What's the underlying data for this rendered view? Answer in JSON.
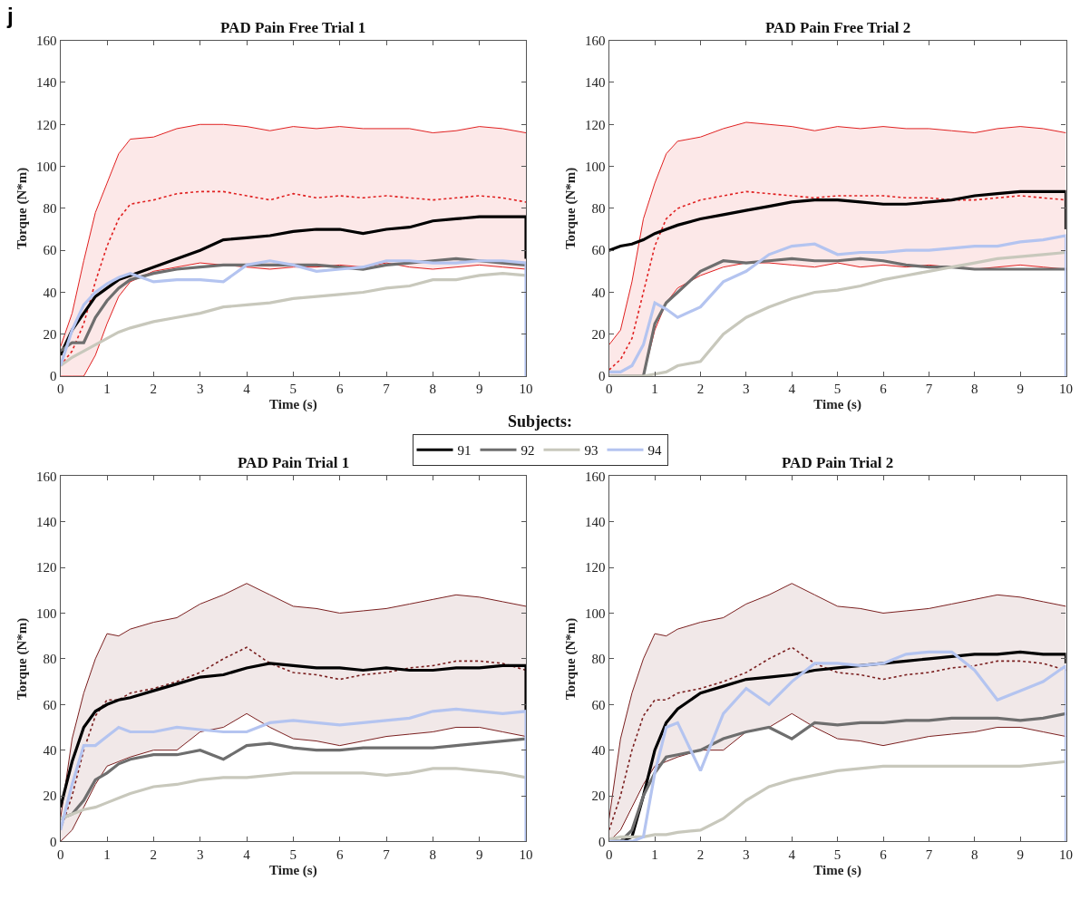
{
  "chart_data": [
    {
      "type": "line",
      "title": "PAD Pain Free Trial 1",
      "xlabel": "Time (s)",
      "ylabel": "Torque (N*m)",
      "annotations": [
        "j"
      ],
      "legend": "bottom",
      "legend_title": "Subjects:",
      "x": [
        0,
        0.25,
        0.5,
        0.75,
        1,
        1.25,
        1.5,
        2,
        2.5,
        3,
        3.5,
        4,
        4.5,
        5,
        5.5,
        6,
        6.5,
        7,
        7.5,
        8,
        8.5,
        9,
        9.5,
        10,
        10
      ],
      "xlim": [
        0,
        10
      ],
      "xticks": [
        0,
        1,
        2,
        3,
        4,
        5,
        6,
        7,
        8,
        9,
        10
      ],
      "ylim": [
        0,
        160
      ],
      "yticks": [
        0,
        20,
        40,
        60,
        80,
        100,
        120,
        140,
        160
      ],
      "series": [
        {
          "color": "#e02020",
          "line_style": "dotted",
          "values": [
            5,
            12,
            25,
            45,
            62,
            75,
            82,
            84,
            87,
            88,
            88,
            86,
            84,
            87,
            85,
            86,
            85,
            86,
            85,
            84,
            85,
            86,
            85,
            83,
            83
          ],
          "upper": [
            14,
            30,
            55,
            78,
            92,
            106,
            113,
            114,
            118,
            120,
            120,
            119,
            117,
            119,
            118,
            119,
            118,
            118,
            118,
            116,
            117,
            119,
            118,
            116,
            116
          ],
          "lower": [
            0,
            0,
            0,
            10,
            25,
            38,
            45,
            50,
            52,
            54,
            53,
            52,
            51,
            52,
            52,
            53,
            52,
            54,
            52,
            51,
            52,
            53,
            52,
            51,
            51
          ]
        },
        {
          "color": "#e02020",
          "values": [
            14,
            30,
            55,
            78,
            92,
            106,
            113,
            114,
            118,
            120,
            120,
            119,
            117,
            119,
            118,
            119,
            118,
            118,
            118,
            116,
            117,
            119,
            118,
            116,
            116
          ]
        },
        {
          "color": "#e02020",
          "values": [
            0,
            0,
            0,
            10,
            25,
            38,
            45,
            50,
            52,
            54,
            53,
            52,
            51,
            52,
            52,
            53,
            52,
            54,
            52,
            51,
            52,
            53,
            52,
            51,
            51
          ]
        },
        {
          "name": "91",
          "color": "#000000",
          "values": [
            10,
            22,
            30,
            38,
            42,
            46,
            48,
            52,
            56,
            60,
            65,
            66,
            67,
            69,
            70,
            70,
            68,
            70,
            71,
            74,
            75,
            76,
            76,
            76,
            56
          ]
        },
        {
          "name": "92",
          "color": "#6e6e6e",
          "values": [
            12,
            16,
            16,
            28,
            36,
            42,
            46,
            49,
            51,
            52,
            53,
            53,
            53,
            53,
            53,
            52,
            51,
            53,
            54,
            55,
            56,
            55,
            54,
            53,
            53
          ]
        },
        {
          "name": "93",
          "color": "#c8c8bc",
          "values": [
            5,
            9,
            12,
            15,
            18,
            21,
            23,
            26,
            28,
            30,
            33,
            34,
            35,
            37,
            38,
            39,
            40,
            42,
            43,
            46,
            46,
            48,
            49,
            48,
            48
          ]
        },
        {
          "name": "94",
          "color": "#b4c4f0",
          "values": [
            5,
            22,
            34,
            40,
            44,
            47,
            49,
            45,
            46,
            46,
            45,
            53,
            55,
            53,
            50,
            51,
            52,
            55,
            55,
            54,
            54,
            55,
            55,
            54,
            0
          ]
        }
      ]
    },
    {
      "type": "line",
      "title": "PAD Pain Free Trial 2",
      "xlabel": "Time (s)",
      "ylabel": "Torque (N*m)",
      "x": [
        0,
        0.25,
        0.5,
        0.75,
        1,
        1.25,
        1.5,
        2,
        2.5,
        3,
        3.5,
        4,
        4.5,
        5,
        5.5,
        6,
        6.5,
        7,
        7.5,
        8,
        8.5,
        9,
        9.5,
        10,
        10
      ],
      "xlim": [
        0,
        10
      ],
      "xticks": [
        0,
        1,
        2,
        3,
        4,
        5,
        6,
        7,
        8,
        9,
        10
      ],
      "ylim": [
        0,
        160
      ],
      "yticks": [
        0,
        20,
        40,
        60,
        80,
        100,
        120,
        140,
        160
      ],
      "series": [
        {
          "color": "#e02020",
          "line_style": "dotted",
          "values": [
            3,
            8,
            18,
            40,
            62,
            75,
            80,
            84,
            86,
            88,
            87,
            86,
            85,
            86,
            86,
            86,
            85,
            85,
            84,
            84,
            85,
            86,
            85,
            84,
            84
          ],
          "upper": [
            15,
            22,
            45,
            75,
            92,
            106,
            112,
            114,
            118,
            121,
            120,
            119,
            117,
            119,
            118,
            119,
            118,
            118,
            117,
            116,
            118,
            119,
            118,
            116,
            116
          ],
          "lower": [
            0,
            0,
            0,
            0,
            22,
            35,
            42,
            48,
            52,
            54,
            54,
            53,
            52,
            54,
            52,
            53,
            52,
            53,
            52,
            51,
            52,
            53,
            52,
            51,
            51
          ]
        },
        {
          "color": "#e02020",
          "values": [
            15,
            22,
            45,
            75,
            92,
            106,
            112,
            114,
            118,
            121,
            120,
            119,
            117,
            119,
            118,
            119,
            118,
            118,
            117,
            116,
            118,
            119,
            118,
            116,
            116
          ]
        },
        {
          "color": "#e02020",
          "values": [
            null,
            null,
            null,
            0,
            22,
            35,
            42,
            48,
            52,
            54,
            54,
            53,
            52,
            54,
            52,
            53,
            52,
            53,
            52,
            51,
            52,
            53,
            52,
            51,
            51
          ]
        },
        {
          "name": "91",
          "color": "#000000",
          "values": [
            60,
            62,
            63,
            65,
            68,
            70,
            72,
            75,
            77,
            79,
            81,
            83,
            84,
            84,
            83,
            82,
            82,
            83,
            84,
            86,
            87,
            88,
            88,
            88,
            70
          ]
        },
        {
          "name": "92",
          "color": "#6e6e6e",
          "values": [
            0,
            0,
            0,
            0,
            25,
            35,
            40,
            50,
            55,
            54,
            55,
            56,
            55,
            55,
            56,
            55,
            53,
            52,
            52,
            51,
            51,
            51,
            51,
            51,
            51
          ]
        },
        {
          "name": "93",
          "color": "#c8c8bc",
          "values": [
            0,
            0,
            0,
            0,
            1,
            2,
            5,
            7,
            20,
            28,
            33,
            37,
            40,
            41,
            43,
            46,
            48,
            50,
            52,
            54,
            56,
            57,
            58,
            59,
            59
          ]
        },
        {
          "name": "94",
          "color": "#b4c4f0",
          "values": [
            2,
            2,
            5,
            15,
            35,
            32,
            28,
            33,
            45,
            50,
            58,
            62,
            63,
            58,
            59,
            59,
            60,
            60,
            61,
            62,
            62,
            64,
            65,
            67,
            0
          ]
        }
      ]
    },
    {
      "type": "line",
      "title": "PAD Pain Trial 1",
      "xlabel": "Time (s)",
      "ylabel": "Torque (N*m)",
      "x": [
        0,
        0.25,
        0.5,
        0.75,
        1,
        1.25,
        1.5,
        2,
        2.5,
        3,
        3.5,
        4,
        4.5,
        5,
        5.5,
        6,
        6.5,
        7,
        7.5,
        8,
        8.5,
        9,
        9.5,
        10,
        10
      ],
      "xlim": [
        0,
        10
      ],
      "xticks": [
        0,
        1,
        2,
        3,
        4,
        5,
        6,
        7,
        8,
        9,
        10
      ],
      "ylim": [
        0,
        160
      ],
      "yticks": [
        0,
        20,
        40,
        60,
        80,
        100,
        120,
        140,
        160
      ],
      "series": [
        {
          "color": "#7a1f1f",
          "line_style": "dotted",
          "values": [
            5,
            20,
            40,
            55,
            62,
            62,
            65,
            67,
            70,
            74,
            80,
            85,
            78,
            74,
            73,
            71,
            73,
            74,
            76,
            77,
            79,
            79,
            78,
            75,
            75
          ],
          "upper": [
            10,
            45,
            65,
            80,
            91,
            90,
            93,
            96,
            98,
            104,
            108,
            113,
            108,
            103,
            102,
            100,
            101,
            102,
            104,
            106,
            108,
            107,
            105,
            103,
            103
          ],
          "lower": [
            0,
            5,
            15,
            25,
            33,
            35,
            37,
            40,
            40,
            48,
            50,
            56,
            50,
            45,
            44,
            42,
            44,
            46,
            47,
            48,
            50,
            50,
            48,
            46,
            46
          ]
        },
        {
          "color": "#7a1f1f",
          "values": [
            10,
            45,
            65,
            80,
            91,
            90,
            93,
            96,
            98,
            104,
            108,
            113,
            108,
            103,
            102,
            100,
            101,
            102,
            104,
            106,
            108,
            107,
            105,
            103,
            103
          ]
        },
        {
          "color": "#7a1f1f",
          "values": [
            0,
            5,
            15,
            25,
            33,
            35,
            37,
            40,
            40,
            48,
            50,
            56,
            50,
            45,
            44,
            42,
            44,
            46,
            47,
            48,
            50,
            50,
            48,
            46,
            46
          ]
        },
        {
          "name": "91",
          "color": "#000000",
          "values": [
            15,
            35,
            50,
            57,
            60,
            62,
            63,
            66,
            69,
            72,
            73,
            76,
            78,
            77,
            76,
            76,
            75,
            76,
            75,
            75,
            76,
            76,
            77,
            77,
            57
          ]
        },
        {
          "name": "92",
          "color": "#6e6e6e",
          "values": [
            10,
            12,
            18,
            27,
            30,
            34,
            36,
            38,
            38,
            40,
            36,
            42,
            43,
            41,
            40,
            40,
            41,
            41,
            41,
            41,
            42,
            43,
            44,
            45,
            45
          ]
        },
        {
          "name": "93",
          "color": "#c8c8bc",
          "values": [
            10,
            12,
            14,
            15,
            17,
            19,
            21,
            24,
            25,
            27,
            28,
            28,
            29,
            30,
            30,
            30,
            30,
            29,
            30,
            32,
            32,
            31,
            30,
            28,
            28
          ]
        },
        {
          "name": "94",
          "color": "#b4c4f0",
          "values": [
            5,
            25,
            42,
            42,
            46,
            50,
            48,
            48,
            50,
            49,
            48,
            48,
            52,
            53,
            52,
            51,
            52,
            53,
            54,
            57,
            58,
            57,
            56,
            57,
            0
          ]
        }
      ]
    },
    {
      "type": "line",
      "title": "PAD Pain Trial 2",
      "xlabel": "Time (s)",
      "ylabel": "Torque (N*m)",
      "x": [
        0,
        0.25,
        0.5,
        0.75,
        1,
        1.25,
        1.5,
        2,
        2.5,
        3,
        3.5,
        4,
        4.5,
        5,
        5.5,
        6,
        6.5,
        7,
        7.5,
        8,
        8.5,
        9,
        9.5,
        10,
        10
      ],
      "xlim": [
        0,
        10
      ],
      "xticks": [
        0,
        1,
        2,
        3,
        4,
        5,
        6,
        7,
        8,
        9,
        10
      ],
      "ylim": [
        0,
        160
      ],
      "yticks": [
        0,
        20,
        40,
        60,
        80,
        100,
        120,
        140,
        160
      ],
      "series": [
        {
          "color": "#7a1f1f",
          "line_style": "dotted",
          "values": [
            5,
            20,
            40,
            55,
            62,
            62,
            65,
            67,
            70,
            74,
            80,
            85,
            78,
            74,
            73,
            71,
            73,
            74,
            76,
            77,
            79,
            79,
            78,
            75,
            75
          ],
          "upper": [
            10,
            45,
            65,
            80,
            91,
            90,
            93,
            96,
            98,
            104,
            108,
            113,
            108,
            103,
            102,
            100,
            101,
            102,
            104,
            106,
            108,
            107,
            105,
            103,
            103
          ],
          "lower": [
            0,
            5,
            15,
            25,
            33,
            35,
            37,
            40,
            40,
            48,
            50,
            56,
            50,
            45,
            44,
            42,
            44,
            46,
            47,
            48,
            50,
            50,
            48,
            46,
            46
          ]
        },
        {
          "color": "#7a1f1f",
          "values": [
            10,
            45,
            65,
            80,
            91,
            90,
            93,
            96,
            98,
            104,
            108,
            113,
            108,
            103,
            102,
            100,
            101,
            102,
            104,
            106,
            108,
            107,
            105,
            103,
            103
          ]
        },
        {
          "color": "#7a1f1f",
          "values": [
            0,
            5,
            15,
            25,
            33,
            35,
            37,
            40,
            40,
            48,
            50,
            56,
            50,
            45,
            44,
            42,
            44,
            46,
            47,
            48,
            50,
            50,
            48,
            46,
            46
          ]
        },
        {
          "name": "91",
          "color": "#000000",
          "values": [
            0,
            0,
            2,
            20,
            40,
            52,
            58,
            65,
            68,
            71,
            72,
            73,
            75,
            76,
            77,
            78,
            79,
            80,
            81,
            82,
            82,
            83,
            82,
            82,
            78
          ]
        },
        {
          "name": "92",
          "color": "#6e6e6e",
          "values": [
            0,
            0,
            5,
            20,
            30,
            37,
            38,
            40,
            45,
            48,
            50,
            45,
            52,
            51,
            52,
            52,
            53,
            53,
            54,
            54,
            54,
            53,
            54,
            56,
            56
          ]
        },
        {
          "name": "93",
          "color": "#c8c8bc",
          "values": [
            1,
            2,
            2,
            2,
            3,
            3,
            4,
            5,
            10,
            18,
            24,
            27,
            29,
            31,
            32,
            33,
            33,
            33,
            33,
            33,
            33,
            33,
            34,
            35,
            35
          ]
        },
        {
          "name": "94",
          "color": "#b4c4f0",
          "values": [
            0,
            0,
            0,
            2,
            30,
            50,
            52,
            31,
            56,
            67,
            60,
            70,
            78,
            78,
            77,
            78,
            82,
            83,
            83,
            75,
            62,
            66,
            70,
            77,
            0
          ]
        }
      ]
    }
  ]
}
